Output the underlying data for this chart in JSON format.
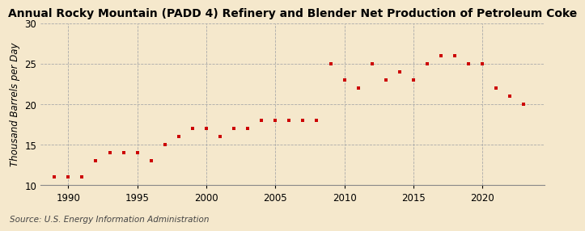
{
  "title": "Annual Rocky Mountain (PADD 4) Refinery and Blender Net Production of Petroleum Coke",
  "ylabel": "Thousand Barrels per Day",
  "source": "Source: U.S. Energy Information Administration",
  "background_color": "#f5e8cc",
  "plot_bg_color": "#f5e8cc",
  "marker_color": "#cc0000",
  "years": [
    1989,
    1990,
    1991,
    1992,
    1993,
    1994,
    1995,
    1996,
    1997,
    1998,
    1999,
    2000,
    2001,
    2002,
    2003,
    2004,
    2005,
    2006,
    2007,
    2008,
    2009,
    2010,
    2011,
    2012,
    2013,
    2014,
    2015,
    2016,
    2017,
    2018,
    2019,
    2020,
    2021,
    2022,
    2023
  ],
  "values": [
    11.0,
    11.0,
    11.0,
    13.0,
    14.0,
    14.0,
    14.0,
    13.0,
    15.0,
    16.0,
    17.0,
    17.0,
    16.0,
    17.0,
    17.0,
    18.0,
    18.0,
    18.0,
    18.0,
    18.0,
    25.0,
    23.0,
    22.0,
    25.0,
    23.0,
    24.0,
    23.0,
    25.0,
    26.0,
    26.0,
    25.0,
    25.0,
    22.0,
    21.0,
    20.0
  ],
  "xlim": [
    1988.0,
    2024.5
  ],
  "ylim": [
    10,
    30
  ],
  "yticks": [
    10,
    15,
    20,
    25,
    30
  ],
  "xticks": [
    1990,
    1995,
    2000,
    2005,
    2010,
    2015,
    2020
  ],
  "grid_color": "#aaaaaa",
  "title_fontsize": 10,
  "label_fontsize": 8.5,
  "tick_fontsize": 8.5,
  "source_fontsize": 7.5
}
